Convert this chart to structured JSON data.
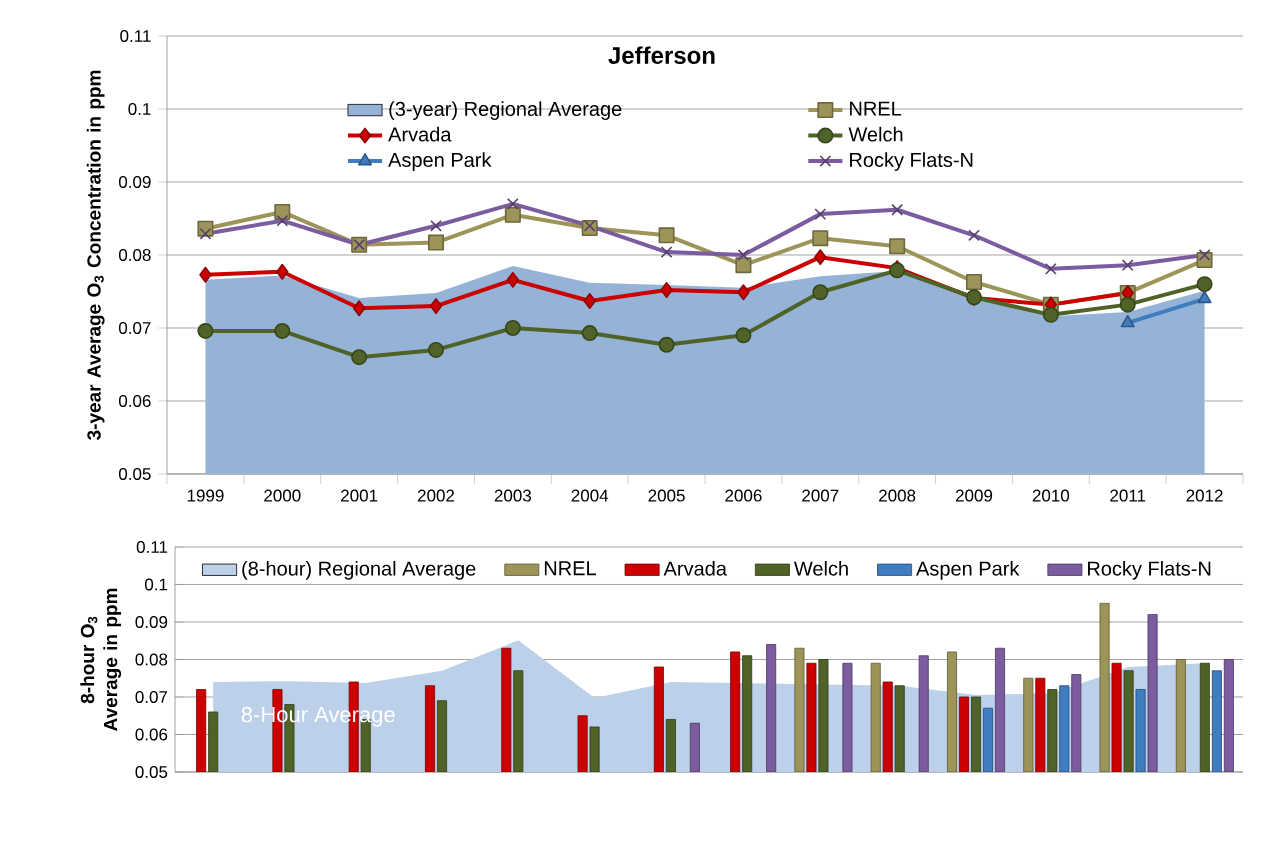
{
  "chart_data": [
    {
      "type": "line",
      "title": "Jefferson",
      "ylabel": "3-year Average O$_{3}$ Concentration in ppm",
      "categories": [
        "1999",
        "2000",
        "2001",
        "2002",
        "2003",
        "2004",
        "2005",
        "2006",
        "2007",
        "2008",
        "2009",
        "2010",
        "2011",
        "2012"
      ],
      "ylim": [
        0.05,
        0.11
      ],
      "yticks": [
        0.05,
        0.06,
        0.07,
        0.08,
        0.09,
        0.1,
        0.11
      ],
      "grid": "y",
      "legend": "top",
      "series": [
        {
          "name": "(3-year) Regional Average",
          "type": "area",
          "color": "#95b3d7",
          "values": [
            0.0766,
            0.0772,
            0.0741,
            0.0748,
            0.0785,
            0.0762,
            0.0759,
            0.0755,
            0.0771,
            0.0778,
            0.0743,
            0.0716,
            0.0722,
            0.0751
          ]
        },
        {
          "name": "NREL",
          "color": "#9c9459",
          "marker": "square",
          "values": [
            0.0836,
            0.0859,
            0.0814,
            0.0817,
            0.0855,
            0.0837,
            0.0827,
            0.0786,
            0.0823,
            0.0812,
            0.0763,
            0.0732,
            0.0748,
            0.0793
          ]
        },
        {
          "name": "Arvada",
          "color": "#cc0000",
          "marker": "diamond",
          "values": [
            0.0773,
            0.0777,
            0.0727,
            0.073,
            0.0766,
            0.0737,
            0.0752,
            0.0749,
            0.0797,
            0.0782,
            0.0741,
            0.0732,
            0.0748,
            null
          ]
        },
        {
          "name": "Welch",
          "color": "#4f6228",
          "marker": "circle",
          "values": [
            0.0696,
            0.0696,
            0.066,
            0.067,
            0.07,
            0.0693,
            0.0677,
            0.069,
            0.0749,
            0.0779,
            0.0742,
            0.0718,
            0.0732,
            0.076
          ]
        },
        {
          "name": "Aspen Park",
          "color": "#3f7cc0",
          "marker": "triangle",
          "values": [
            null,
            null,
            null,
            null,
            null,
            null,
            null,
            null,
            null,
            null,
            null,
            null,
            0.0707,
            0.074
          ]
        },
        {
          "name": "Rocky Flats-N",
          "color": "#7b5c9f",
          "marker": "cross",
          "values": [
            0.0829,
            0.0847,
            0.0814,
            0.084,
            0.087,
            0.084,
            0.0804,
            0.08,
            0.0856,
            0.0862,
            0.0827,
            0.0781,
            0.0786,
            0.08
          ]
        }
      ]
    },
    {
      "type": "bar",
      "ylabel": "8-hour O$_{3}$ Average in ppm",
      "categories": [
        null,
        null,
        null,
        null,
        null,
        null,
        null,
        null,
        null,
        null,
        null,
        null,
        null,
        null
      ],
      "ylim": [
        0.05,
        0.11
      ],
      "yticks": [
        0.05,
        0.06,
        0.07,
        0.08,
        0.09,
        0.1,
        0.11
      ],
      "grid": "y",
      "legend": "top",
      "tick_labels": "y",
      "annotations": [
        "8-Hour Average"
      ],
      "series": [
        {
          "name": "(8-hour) Regional Average",
          "type": "area",
          "color": "#bcd0ea",
          "values": [
            0.074,
            0.0742,
            0.0737,
            0.077,
            0.0851,
            0.0697,
            0.074,
            null,
            null,
            0.073,
            0.0705,
            0.071,
            0.078,
            0.079
          ]
        },
        {
          "name": "NREL",
          "color": "#9c9459",
          "values": [
            null,
            null,
            null,
            null,
            null,
            null,
            null,
            null,
            0.083,
            0.079,
            0.082,
            0.075,
            0.095,
            0.08
          ]
        },
        {
          "name": "Arvada",
          "color": "#cc0000",
          "values": [
            0.072,
            0.072,
            0.074,
            0.073,
            0.083,
            0.065,
            0.078,
            0.082,
            0.079,
            0.074,
            0.07,
            0.075,
            0.079,
            null
          ]
        },
        {
          "name": "Welch",
          "color": "#4f6228",
          "values": [
            0.066,
            0.068,
            0.064,
            0.069,
            0.077,
            0.062,
            0.064,
            0.081,
            0.08,
            0.073,
            0.07,
            0.072,
            0.077,
            0.079
          ]
        },
        {
          "name": "Aspen Park",
          "color": "#3f7cc0",
          "values": [
            null,
            null,
            null,
            null,
            null,
            null,
            null,
            null,
            null,
            null,
            0.067,
            0.073,
            0.072,
            0.077
          ]
        },
        {
          "name": "Rocky Flats-N",
          "color": "#7b5c9f",
          "values": [
            null,
            null,
            null,
            null,
            null,
            null,
            0.063,
            0.084,
            0.079,
            0.081,
            0.083,
            0.076,
            0.092,
            0.08
          ]
        }
      ]
    }
  ]
}
